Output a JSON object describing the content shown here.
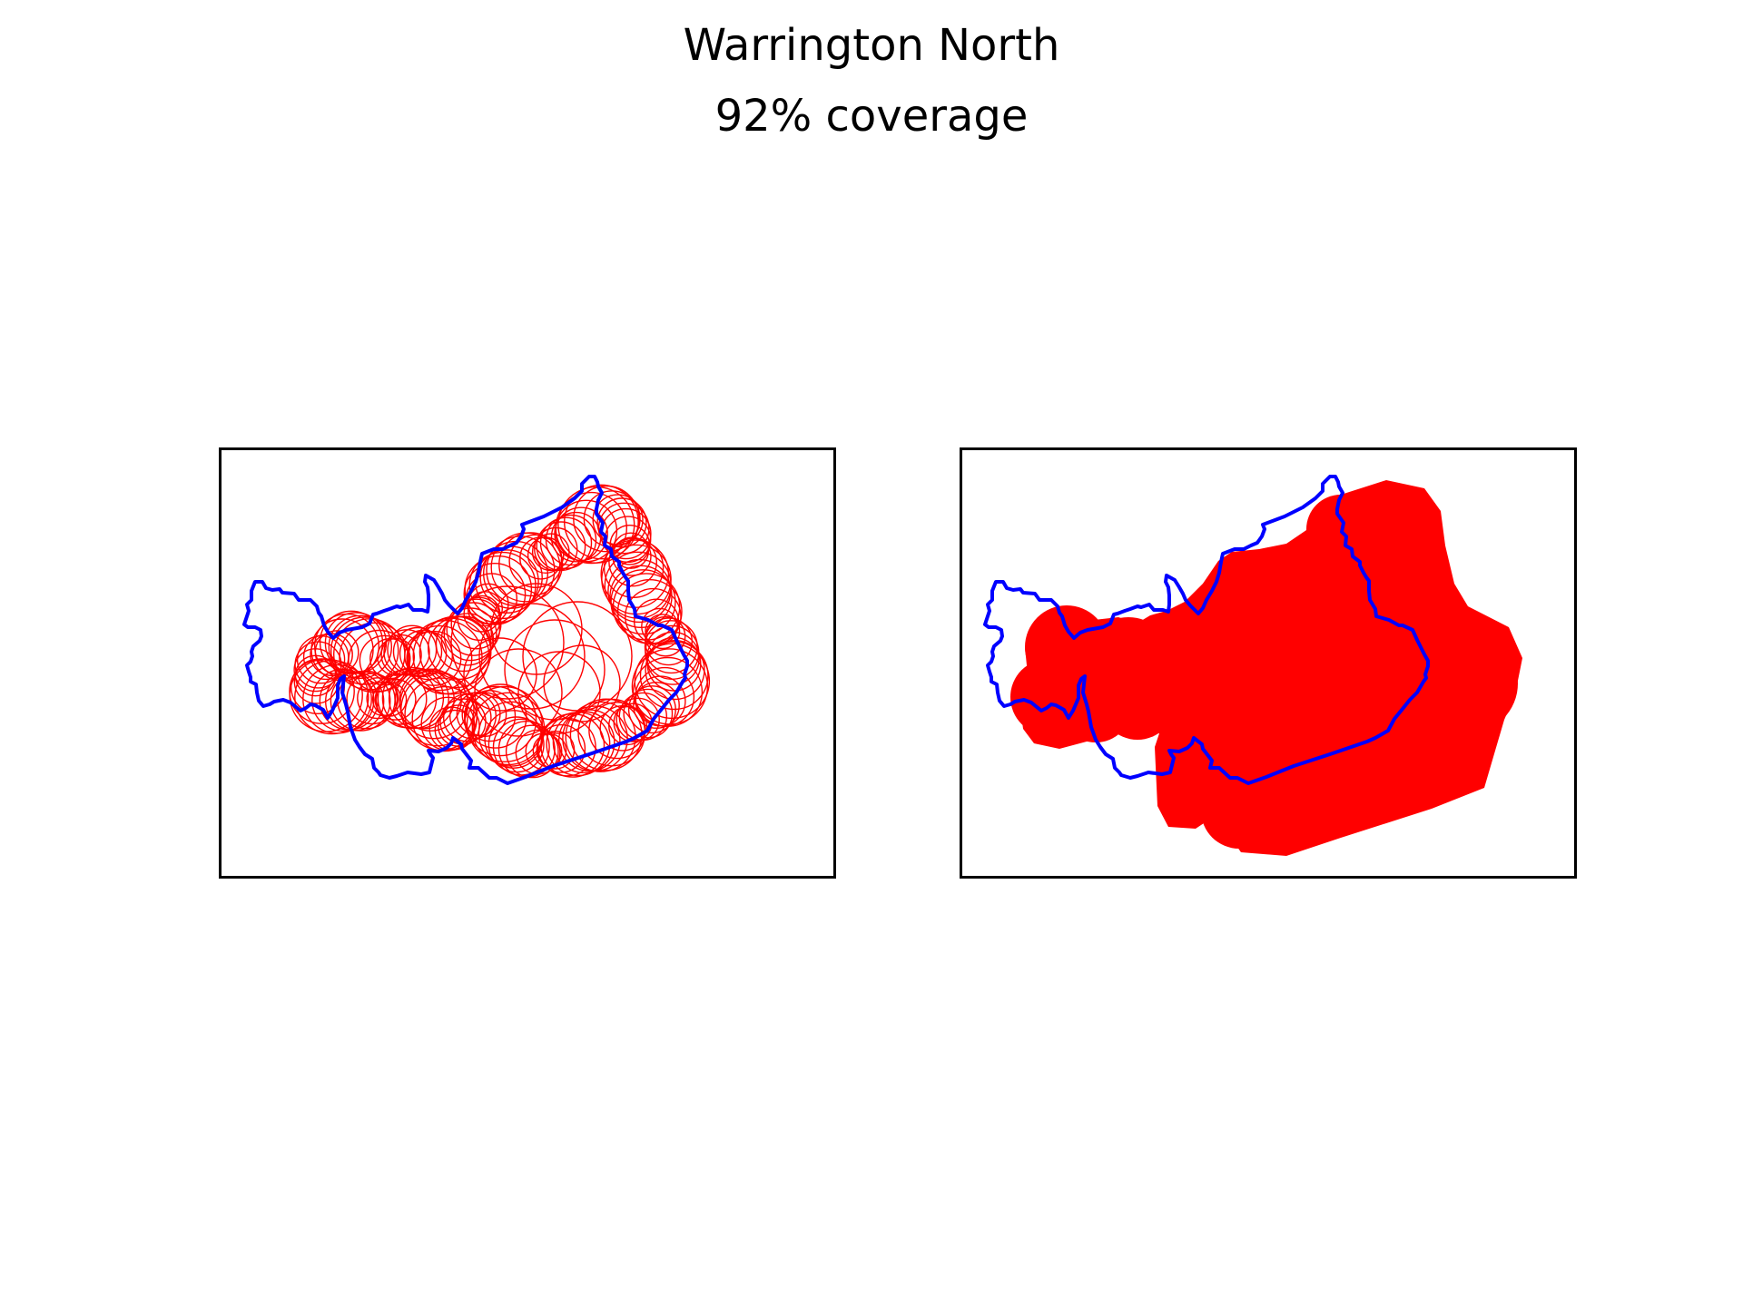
{
  "title": "Warrington North",
  "subtitle": "92% coverage",
  "colors": {
    "boundary": "#0000ff",
    "coverage": "#ff0000",
    "frame": "#000000",
    "background": "#ffffff"
  },
  "panels": [
    {
      "name": "coverage-circles",
      "style": "outlined circles"
    },
    {
      "name": "coverage-union",
      "style": "filled union"
    }
  ]
}
